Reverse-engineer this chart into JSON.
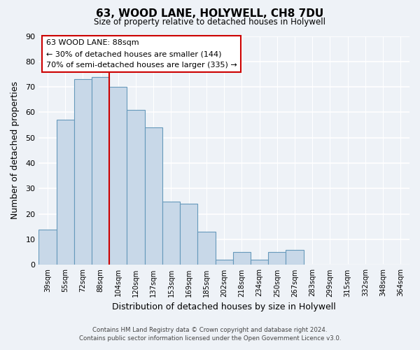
{
  "title": "63, WOOD LANE, HOLYWELL, CH8 7DU",
  "subtitle": "Size of property relative to detached houses in Holywell",
  "xlabel": "Distribution of detached houses by size in Holywell",
  "ylabel": "Number of detached properties",
  "footer_line1": "Contains HM Land Registry data © Crown copyright and database right 2024.",
  "footer_line2": "Contains public sector information licensed under the Open Government Licence v3.0.",
  "bar_labels": [
    "39sqm",
    "55sqm",
    "72sqm",
    "88sqm",
    "104sqm",
    "120sqm",
    "137sqm",
    "153sqm",
    "169sqm",
    "185sqm",
    "202sqm",
    "218sqm",
    "234sqm",
    "250sqm",
    "267sqm",
    "283sqm",
    "299sqm",
    "315sqm",
    "332sqm",
    "348sqm",
    "364sqm"
  ],
  "bar_values": [
    14,
    57,
    73,
    74,
    70,
    61,
    54,
    25,
    24,
    13,
    2,
    5,
    2,
    5,
    6,
    0,
    0,
    0,
    0,
    0,
    0
  ],
  "bar_color": "#c8d8e8",
  "bar_edge_color": "#6699bb",
  "highlight_idx": 3,
  "highlight_color": "#cc0000",
  "ylim": [
    0,
    90
  ],
  "yticks": [
    0,
    10,
    20,
    30,
    40,
    50,
    60,
    70,
    80,
    90
  ],
  "annotation_title": "63 WOOD LANE: 88sqm",
  "annotation_line1": "← 30% of detached houses are smaller (144)",
  "annotation_line2": "70% of semi-detached houses are larger (335) →",
  "annotation_box_color": "#ffffff",
  "annotation_box_edge": "#cc0000",
  "bg_color": "#eef2f7"
}
